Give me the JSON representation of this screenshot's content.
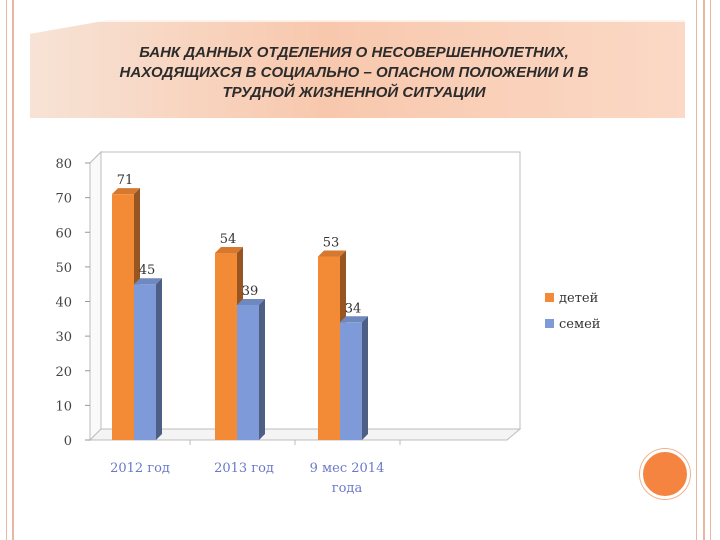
{
  "title_lines": [
    "БАНК ДАННЫХ ОТДЕЛЕНИЯ О НЕСОВЕРШЕННОЛЕТНИХ,",
    "НАХОДЯЩИХСЯ В СОЦИАЛЬНО – ОПАСНОМ ПОЛОЖЕНИИ И В",
    "ТРУДНОЙ ЖИЗНЕННОЙ СИТУАЦИИ"
  ],
  "chart_data": {
    "type": "bar",
    "title": "",
    "xlabel": "",
    "ylabel": "",
    "categories": [
      "2012 год",
      "2013 год",
      "9 мес 2014 года"
    ],
    "category_label_lines": [
      [
        "2012 год"
      ],
      [
        "2013 год"
      ],
      [
        "9 мес 2014",
        "года"
      ]
    ],
    "series": [
      {
        "name": "детей",
        "values": [
          71,
          54,
          53
        ],
        "color": "#f38a36"
      },
      {
        "name": "семей",
        "values": [
          45,
          39,
          34
        ],
        "color": "#7e9ad8"
      }
    ],
    "ylim": [
      0,
      80
    ],
    "yticks": [
      0,
      10,
      20,
      30,
      40,
      50,
      60,
      70,
      80
    ],
    "grid": false,
    "legend": "right",
    "style": "3d-column"
  }
}
